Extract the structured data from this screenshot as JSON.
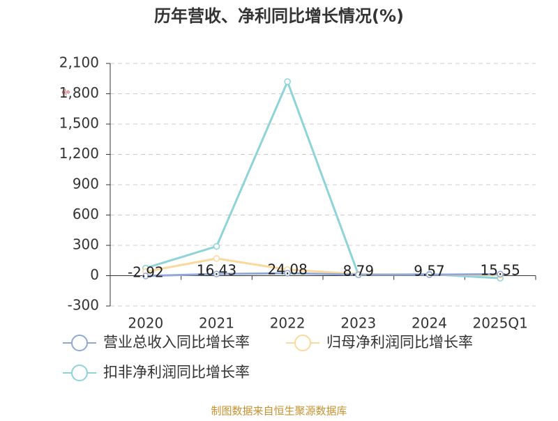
{
  "chart_data": {
    "type": "line",
    "title": "历年营收、净利同比增长情况(%)",
    "unit": "%",
    "categories": [
      "2020",
      "2021",
      "2022",
      "2023",
      "2024",
      "2025Q1"
    ],
    "series": [
      {
        "name": "营业总收入同比增长率",
        "color": "#8fa8d8",
        "values": [
          -2.92,
          16.43,
          24.08,
          8.79,
          9.57,
          15.55
        ]
      },
      {
        "name": "归母净利润同比增长率",
        "color": "#fbd89c",
        "values": [
          40,
          170,
          60,
          15,
          10,
          5
        ]
      },
      {
        "name": "扣非净利润同比增长率",
        "color": "#8dd3d8",
        "values": [
          75,
          290,
          1920,
          10,
          15,
          -25
        ]
      }
    ],
    "ylim": [
      -300,
      2100
    ],
    "yticks": [
      -300,
      0,
      300,
      600,
      900,
      {
        "value": 1200,
        "label": "1,200"
      },
      {
        "value": 1500,
        "label": "1,500"
      },
      {
        "value": 1800,
        "label": "1,800"
      },
      {
        "value": 2100,
        "label": "2,100"
      }
    ],
    "grid": true,
    "source": "制图数据来自恒生聚源数据库"
  }
}
